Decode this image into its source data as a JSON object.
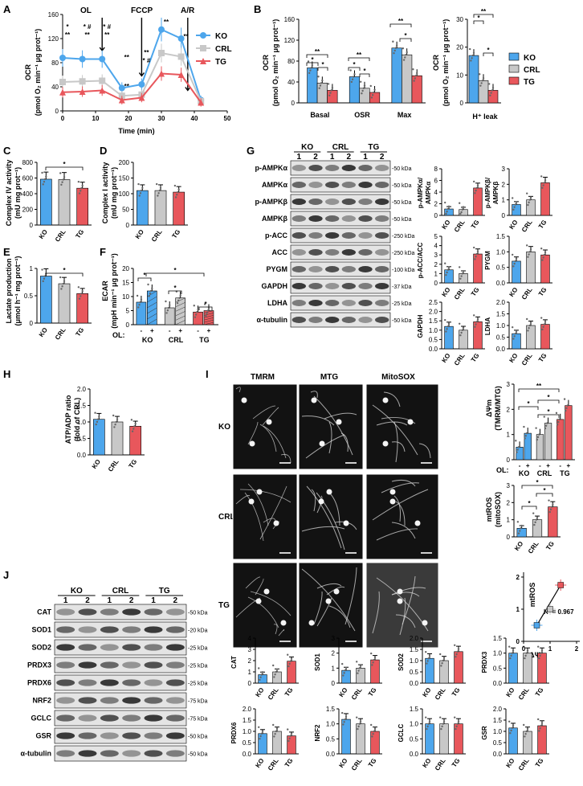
{
  "colors": {
    "KO": "#4da6ec",
    "CRL": "#c8c8c8",
    "TG": "#e8575c"
  },
  "panels": {
    "A": "A",
    "B": "B",
    "C": "C",
    "D": "D",
    "E": "E",
    "F": "F",
    "G": "G",
    "H": "H",
    "I": "I",
    "J": "J"
  },
  "legend": [
    "KO",
    "CRL",
    "TG"
  ],
  "groups": [
    "KO",
    "CRL",
    "TG"
  ],
  "panelA": {
    "annotations": [
      "OL",
      "FCCP",
      "A/R"
    ],
    "ylabel": "OCR",
    "yunit": "(pmol O₂ min⁻¹ μg prot⁻¹)",
    "xlabel": "Time (min)",
    "yticks": [
      "0",
      "40",
      "80",
      "120",
      "160"
    ],
    "xticks": [
      "0",
      "10",
      "20",
      "30",
      "40",
      "50"
    ],
    "sig": [
      "*",
      "**",
      "* #",
      "**",
      "* #",
      "**",
      "**",
      "**",
      "* #",
      "**",
      "**",
      "**"
    ]
  },
  "panelB": {
    "ylabel": "OCR",
    "yunit": "(pmol O₂ min⁻¹ μg prot⁻¹)",
    "yticks": [
      "0",
      "40",
      "80",
      "120",
      "160"
    ],
    "categories": [
      "Basal",
      "OSR",
      "Max"
    ],
    "right_ylabel": "OCR",
    "right_yunit": "(pmol O₂ min⁻¹ μg prot⁻¹)",
    "right_yticks": [
      "0",
      "10",
      "20",
      "30"
    ],
    "right_category": "H⁺ leak"
  },
  "panelC": {
    "ylabel": "Complex IV activity",
    "yunit": "(mU mg prot⁻¹)",
    "yticks": [
      "0",
      "200",
      "400",
      "600",
      "800"
    ]
  },
  "panelD": {
    "ylabel": "Complex I activity",
    "yunit": "(mU mg prot⁻¹)",
    "yticks": [
      "0",
      "50",
      "100",
      "150",
      "200"
    ]
  },
  "panelE": {
    "ylabel": "Lactate production",
    "yunit": "(μmol h⁻¹ mg prot⁻¹)",
    "yticks": [
      "0",
      "0.5",
      "1"
    ]
  },
  "panelF": {
    "ylabel": "ECAR",
    "yunit": "(mpH min⁻¹ μg prot⁻¹)",
    "yticks": [
      "0",
      "5",
      "10",
      "15",
      "20"
    ],
    "ol": "OL:",
    "signs": [
      "-",
      "+"
    ]
  },
  "panelG": {
    "lanes": [
      "1",
      "2",
      "1",
      "2",
      "1",
      "2"
    ],
    "proteins": [
      "p-AMPKα",
      "AMPKα",
      "p-AMPKβ",
      "AMPKβ",
      "p-ACC",
      "ACC",
      "PYGM",
      "GAPDH",
      "LDHA",
      "α-tubulin"
    ],
    "kda": [
      "50 kDa",
      "50 kDa",
      "50 kDa",
      "50 kDa",
      "250 kDa",
      "250 kDa",
      "100 kDa",
      "37 kDa",
      "25 kDa",
      "50 kDa"
    ],
    "quant_labels": [
      "p-AMPKα/\nAMPKα",
      "p-AMPKβ/\nAMPKβ",
      "p-ACC/ACC",
      "PYGM",
      "GAPDH",
      "LDHA"
    ]
  },
  "panelH": {
    "ylabel": "ATP/ADP ratio",
    "yunit": "(fold of CRL)",
    "yticks": [
      "0.0",
      "0.5",
      "1.0",
      "1.5",
      "2.0"
    ]
  },
  "panelI": {
    "columns": [
      "TMRM",
      "MTG",
      "MitoSOX"
    ],
    "rows": [
      "KO",
      "CRL",
      "TG"
    ],
    "dpsi_label": "ΔΨm",
    "dpsi_unit": "(TMRM/MTG)",
    "mros_label": "mtROS",
    "mros_unit": "(mitoSOX)",
    "scatter_y": "mtROS",
    "scatter_x": "ΔΨm",
    "r2": "R² = 0.967",
    "scatter_ticks_x": [
      "0",
      "1",
      "2"
    ],
    "scatter_ticks_y": [
      "0",
      "1",
      "2"
    ],
    "ol": "OL:"
  },
  "panelJ": {
    "lanes": [
      "1",
      "2",
      "1",
      "2",
      "1",
      "2"
    ],
    "proteins": [
      "CAT",
      "SOD1",
      "SOD2",
      "PRDX3",
      "PRDX6",
      "NRF2",
      "GCLC",
      "GSR",
      "α-tubulin"
    ],
    "kda": [
      "50 kDa",
      "20 kDa",
      "25 kDa",
      "25 kDa",
      "25 kDa",
      "75 kDa",
      "75 kDa",
      "50 kDa",
      "50 kDa"
    ],
    "quant_labels": [
      "CAT",
      "SOD1",
      "SOD2",
      "PRDX3",
      "PRDX6",
      "NRF2",
      "GCLC",
      "GSR"
    ]
  },
  "chart_data": [
    {
      "type": "line",
      "panel": "A",
      "x": [
        0,
        6,
        12,
        18,
        24,
        30,
        36,
        42
      ],
      "series": [
        {
          "name": "KO",
          "values": [
            88,
            86,
            86,
            38,
            44,
            135,
            120,
            18
          ]
        },
        {
          "name": "CRL",
          "values": [
            48,
            49,
            50,
            25,
            27,
            96,
            90,
            16
          ]
        },
        {
          "name": "TG",
          "values": [
            31,
            32,
            34,
            18,
            22,
            62,
            60,
            14
          ]
        }
      ],
      "xlim": [
        0,
        50
      ],
      "ylim": [
        0,
        160
      ]
    },
    {
      "type": "bar",
      "panel": "B",
      "categories": [
        "Basal",
        "OSR",
        "Max"
      ],
      "series": [
        {
          "name": "KO",
          "values": [
            67,
            50,
            105
          ]
        },
        {
          "name": "CRL",
          "values": [
            38,
            28,
            92
          ]
        },
        {
          "name": "TG",
          "values": [
            24,
            20,
            52
          ]
        }
      ],
      "ylim": [
        0,
        160
      ]
    },
    {
      "type": "bar",
      "panel": "B-leak",
      "categories": [
        "H⁺ leak"
      ],
      "series": [
        {
          "name": "KO",
          "values": [
            17
          ]
        },
        {
          "name": "CRL",
          "values": [
            8
          ]
        },
        {
          "name": "TG",
          "values": [
            4.5
          ]
        }
      ],
      "ylim": [
        0,
        30
      ]
    },
    {
      "type": "bar",
      "panel": "C",
      "categories": [
        "KO",
        "CRL",
        "TG"
      ],
      "values": [
        585,
        580,
        470
      ],
      "ylim": [
        0,
        800
      ]
    },
    {
      "type": "bar",
      "panel": "D",
      "categories": [
        "KO",
        "CRL",
        "TG"
      ],
      "values": [
        110,
        110,
        105
      ],
      "ylim": [
        0,
        200
      ]
    },
    {
      "type": "bar",
      "panel": "E",
      "categories": [
        "KO",
        "CRL",
        "TG"
      ],
      "values": [
        0.86,
        0.72,
        0.54
      ],
      "ylim": [
        0,
        1
      ]
    },
    {
      "type": "bar",
      "panel": "F",
      "categories": [
        "KO",
        "CRL",
        "TG"
      ],
      "series": [
        {
          "name": "-",
          "values": [
            8,
            6,
            4.5
          ]
        },
        {
          "name": "+",
          "values": [
            12,
            9.5,
            5
          ]
        }
      ],
      "ylim": [
        0,
        20
      ]
    },
    {
      "type": "bar",
      "panel": "H",
      "categories": [
        "KO",
        "CRL",
        "TG"
      ],
      "values": [
        1.08,
        1.0,
        0.87
      ],
      "ylim": [
        0,
        2
      ]
    },
    {
      "type": "bar",
      "panel": "I-dpsi",
      "categories": [
        "KO",
        "CRL",
        "TG"
      ],
      "series": [
        {
          "name": "-",
          "values": [
            0.5,
            1.0,
            1.6
          ]
        },
        {
          "name": "+",
          "values": [
            1.05,
            1.45,
            2.15
          ]
        }
      ],
      "ylim": [
        0,
        3
      ]
    },
    {
      "type": "bar",
      "panel": "I-mros",
      "categories": [
        "KO",
        "CRL",
        "TG"
      ],
      "values": [
        0.5,
        1.0,
        1.75
      ],
      "ylim": [
        0,
        3
      ]
    },
    {
      "type": "scatter",
      "panel": "I-scatter",
      "x": [
        0.5,
        1.0,
        1.4
      ],
      "y": [
        0.5,
        1.0,
        1.75
      ],
      "xlim": [
        0,
        2
      ],
      "ylim": [
        0,
        2
      ]
    },
    {
      "type": "bar",
      "panel": "G-quant",
      "items": [
        {
          "label": "p-AMPKα/AMPKα",
          "values": [
            1.1,
            1.0,
            4.7
          ],
          "ylim": [
            0,
            8
          ],
          "yticks": [
            "0",
            "2",
            "4",
            "6",
            "8"
          ]
        },
        {
          "label": "p-AMPKβ/AMPKβ",
          "values": [
            0.7,
            1.0,
            2.1
          ],
          "ylim": [
            0,
            3
          ],
          "yticks": [
            "0",
            "1",
            "2",
            "3"
          ]
        },
        {
          "label": "p-ACC/ACC",
          "values": [
            1.4,
            1.0,
            3.1
          ],
          "ylim": [
            0,
            5
          ],
          "yticks": [
            "0",
            "1",
            "2",
            "3",
            "4",
            "5"
          ]
        },
        {
          "label": "PYGM",
          "values": [
            0.7,
            1.0,
            0.9
          ],
          "ylim": [
            0,
            1.5
          ],
          "yticks": [
            "0.0",
            "0.5",
            "1.0",
            "1.5"
          ]
        },
        {
          "label": "GAPDH",
          "values": [
            1.2,
            1.0,
            1.45
          ],
          "ylim": [
            0,
            2.5
          ],
          "yticks": [
            "0.0",
            "0.5",
            "1.0",
            "1.5",
            "2.0",
            "2.5"
          ]
        },
        {
          "label": "LDHA",
          "values": [
            0.65,
            1.0,
            1.05
          ],
          "ylim": [
            0,
            2
          ],
          "yticks": [
            "0.0",
            "0.5",
            "1.0",
            "1.5",
            "2.0"
          ]
        }
      ]
    },
    {
      "type": "bar",
      "panel": "J-quant",
      "items": [
        {
          "label": "CAT",
          "values": [
            0.75,
            1.0,
            1.95
          ],
          "ylim": [
            0,
            4
          ],
          "yticks": [
            "0",
            "1",
            "2",
            "3",
            "4"
          ]
        },
        {
          "label": "SOD1",
          "values": [
            0.85,
            1.0,
            1.55
          ],
          "ylim": [
            0,
            3
          ],
          "yticks": [
            "0",
            "1",
            "2",
            "3"
          ]
        },
        {
          "label": "SOD2",
          "values": [
            1.1,
            1.0,
            1.4
          ],
          "ylim": [
            0,
            2
          ],
          "yticks": [
            "0.0",
            "0.5",
            "1.0",
            "1.5",
            "2.0"
          ]
        },
        {
          "label": "PRDX3",
          "values": [
            1.0,
            1.0,
            1.0
          ],
          "ylim": [
            0,
            1.5
          ],
          "yticks": [
            "0.0",
            "0.5",
            "1.0",
            "1.5"
          ]
        },
        {
          "label": "PRDX6",
          "values": [
            0.9,
            1.0,
            0.8
          ],
          "ylim": [
            0,
            2
          ],
          "yticks": [
            "0.0",
            "0.5",
            "1.0",
            "1.5",
            "2.0"
          ]
        },
        {
          "label": "NRF2",
          "values": [
            1.15,
            1.0,
            0.75
          ],
          "ylim": [
            0,
            1.5
          ],
          "yticks": [
            "0.0",
            "0.5",
            "1.0",
            "1.5"
          ]
        },
        {
          "label": "GCLC",
          "values": [
            1.0,
            1.0,
            1.0
          ],
          "ylim": [
            0,
            1.5
          ],
          "yticks": [
            "0.0",
            "0.5",
            "1.0",
            "1.5"
          ]
        },
        {
          "label": "GSR",
          "values": [
            1.15,
            1.0,
            1.25
          ],
          "ylim": [
            0,
            2
          ],
          "yticks": [
            "0.0",
            "0.5",
            "1.0",
            "1.5",
            "2.0"
          ]
        }
      ]
    }
  ]
}
